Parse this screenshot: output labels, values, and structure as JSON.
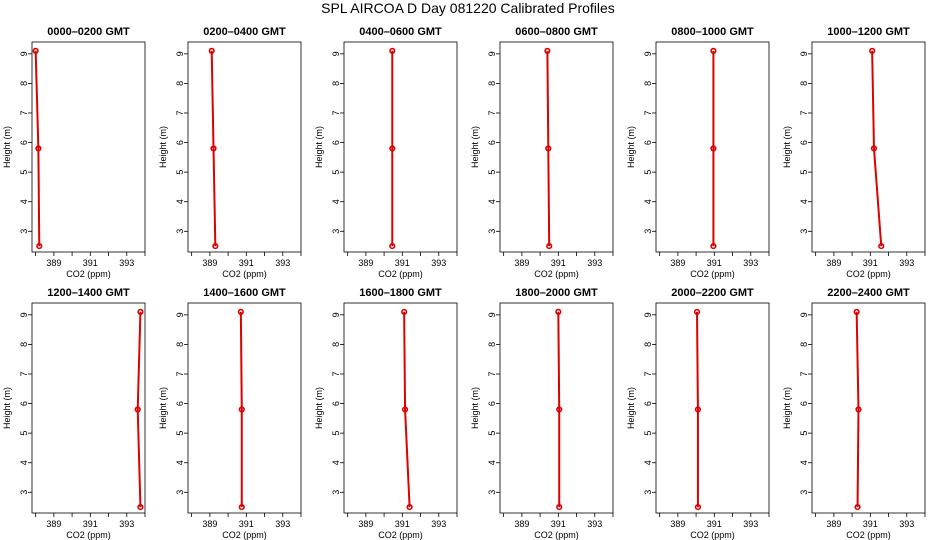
{
  "title": "SPL AIRCOA D  Day 081220  Calibrated Profiles",
  "chart_data": {
    "type": "line",
    "title": "SPL AIRCOA D  Day 081220  Calibrated Profiles",
    "xlabel": "CO2 (ppm)",
    "ylabel": "Height (m)",
    "xlim": [
      387.8,
      394.0
    ],
    "ylim": [
      2.3,
      9.4
    ],
    "x_ticks": [
      389,
      391,
      393
    ],
    "x_ticks_unlabeled": [
      388,
      390,
      392,
      394
    ],
    "y_ticks": [
      3,
      4,
      5,
      6,
      7,
      8,
      9
    ],
    "heights": [
      2.5,
      5.8,
      9.1
    ],
    "line_color": "#dd0000",
    "panels": [
      {
        "title": "0000–0200 GMT",
        "co2": [
          388.2,
          388.15,
          388.0
        ]
      },
      {
        "title": "0200–0400 GMT",
        "co2": [
          389.3,
          389.2,
          389.1
        ]
      },
      {
        "title": "0400–0600 GMT",
        "co2": [
          390.45,
          390.45,
          390.45
        ]
      },
      {
        "title": "0600–0800 GMT",
        "co2": [
          390.5,
          390.45,
          390.4
        ]
      },
      {
        "title": "0800–1000 GMT",
        "co2": [
          390.95,
          390.95,
          390.95
        ]
      },
      {
        "title": "1000–1200 GMT",
        "co2": [
          391.6,
          391.2,
          391.1
        ]
      },
      {
        "title": "1200–1400 GMT",
        "co2": [
          393.75,
          393.6,
          393.75
        ]
      },
      {
        "title": "1400–1600 GMT",
        "co2": [
          390.75,
          390.75,
          390.7
        ]
      },
      {
        "title": "1600–1800 GMT",
        "co2": [
          391.4,
          391.15,
          391.1
        ]
      },
      {
        "title": "1800–2000 GMT",
        "co2": [
          391.05,
          391.05,
          391.0
        ]
      },
      {
        "title": "2000–2200 GMT",
        "co2": [
          390.1,
          390.1,
          390.05
        ]
      },
      {
        "title": "2200–2400 GMT",
        "co2": [
          390.3,
          390.35,
          390.25
        ]
      }
    ]
  }
}
